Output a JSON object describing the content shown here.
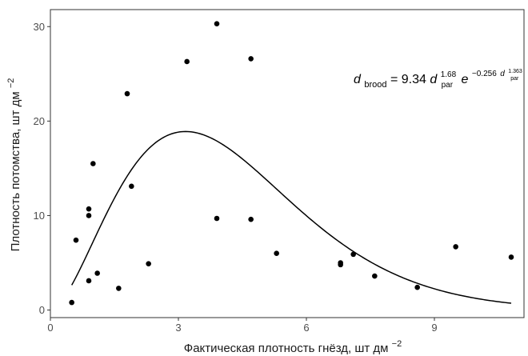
{
  "chart_data": {
    "type": "scatter",
    "xlabel": "Фактическая плотность гнёзд, шт дм",
    "xlabel_sup": "−2",
    "ylabel": "Плотность потомства, шт дм",
    "ylabel_sup": "−2",
    "xlim": [
      0,
      11.1
    ],
    "ylim": [
      -0.8,
      31.8
    ],
    "x_ticks": [
      0,
      3,
      6,
      9
    ],
    "x_tick_labels": [
      "0",
      "3",
      "6",
      "9"
    ],
    "y_ticks": [
      0,
      10,
      20,
      30
    ],
    "y_tick_labels": [
      "0",
      "10",
      "20",
      "30"
    ],
    "grid": true,
    "legend": "none",
    "points": [
      {
        "x": 0.5,
        "y": 0.8
      },
      {
        "x": 0.6,
        "y": 7.4
      },
      {
        "x": 0.9,
        "y": 10.7
      },
      {
        "x": 0.9,
        "y": 10.0
      },
      {
        "x": 0.9,
        "y": 3.1
      },
      {
        "x": 1.0,
        "y": 15.5
      },
      {
        "x": 1.1,
        "y": 3.9
      },
      {
        "x": 1.6,
        "y": 2.3
      },
      {
        "x": 1.8,
        "y": 22.9
      },
      {
        "x": 1.9,
        "y": 13.1
      },
      {
        "x": 2.3,
        "y": 4.9
      },
      {
        "x": 3.2,
        "y": 26.3
      },
      {
        "x": 3.9,
        "y": 30.3
      },
      {
        "x": 3.9,
        "y": 9.7
      },
      {
        "x": 4.7,
        "y": 26.6
      },
      {
        "x": 4.7,
        "y": 9.6
      },
      {
        "x": 5.3,
        "y": 6.0
      },
      {
        "x": 6.8,
        "y": 5.0
      },
      {
        "x": 6.8,
        "y": 4.8
      },
      {
        "x": 7.1,
        "y": 5.9
      },
      {
        "x": 7.6,
        "y": 3.6
      },
      {
        "x": 8.6,
        "y": 2.4
      },
      {
        "x": 9.5,
        "y": 6.7
      },
      {
        "x": 10.8,
        "y": 5.6
      }
    ],
    "fit": {
      "a": 9.34,
      "b": 1.68,
      "c": 0.256,
      "d": 1.363,
      "x_range": [
        0.5,
        10.8
      ]
    },
    "equation": {
      "lhs": "d",
      "lhs_sub": "brood",
      "eq": " = 9.34",
      "d": "d",
      "sub_par": "par",
      "exp1": "1.68",
      "e": "e",
      "exp2_pre": "−0.256",
      "exp2_d": "d",
      "exp2_sup": "1.363",
      "exp2_sub": "par"
    },
    "point_color": "#000000",
    "line_color": "#000000"
  }
}
